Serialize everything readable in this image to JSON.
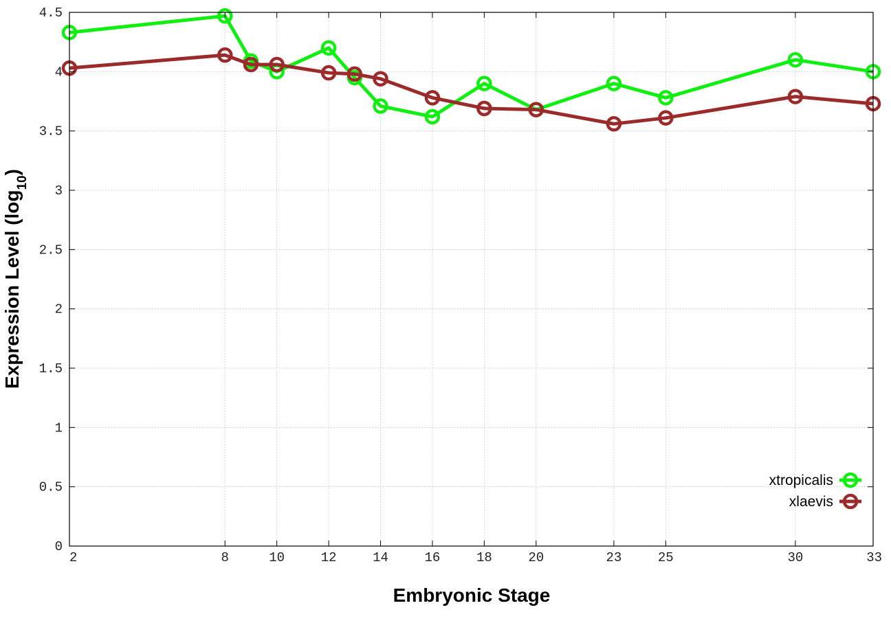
{
  "chart_data": {
    "type": "line",
    "xlabel": "Embryonic Stage",
    "ylabel": "Expression Level (log",
    "ylabel_subscript": "10",
    "ylabel_close": ")",
    "ylim": [
      0,
      4.5
    ],
    "y_ticks": [
      "0",
      "0.5",
      "1",
      "1.5",
      "2",
      "2.5",
      "3",
      "3.5",
      "4",
      "4.5"
    ],
    "x_ticks": [
      "2",
      "8",
      "10",
      "12",
      "14",
      "16",
      "18",
      "20",
      "23",
      "25",
      "30",
      "33"
    ],
    "x": [
      2,
      8,
      9,
      10,
      12,
      13,
      14,
      16,
      18,
      20,
      23,
      25,
      30,
      33
    ],
    "grid": true,
    "legend_position": "bottom-right",
    "series": [
      {
        "name": "xtropicalis",
        "color": "#11ee11",
        "values": [
          4.33,
          4.47,
          4.09,
          4.0,
          4.2,
          3.95,
          3.71,
          3.62,
          3.9,
          3.68,
          3.9,
          3.78,
          4.1,
          4.0
        ]
      },
      {
        "name": "xlaevis",
        "color": "#9b2a2a",
        "values": [
          4.03,
          4.14,
          4.06,
          4.06,
          3.99,
          3.98,
          3.94,
          3.78,
          3.69,
          3.68,
          3.56,
          3.61,
          3.79,
          3.73
        ]
      }
    ]
  }
}
